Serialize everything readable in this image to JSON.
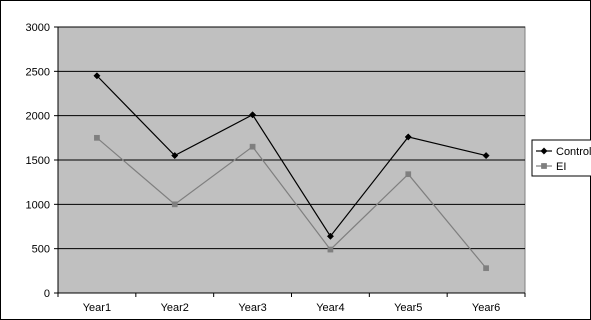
{
  "chart_data": {
    "type": "line",
    "categories": [
      "Year1",
      "Year2",
      "Year3",
      "Year4",
      "Year5",
      "Year6"
    ],
    "series": [
      {
        "name": "Control",
        "values": [
          2450,
          1550,
          2010,
          640,
          1760,
          1550
        ],
        "color": "#000000",
        "marker": "diamond"
      },
      {
        "name": "EI",
        "values": [
          1750,
          1000,
          1650,
          490,
          1340,
          280
        ],
        "color": "#7f7f7f",
        "marker": "square"
      }
    ],
    "ylim": [
      0,
      3000
    ],
    "yticks": [
      "0",
      "500",
      "1000",
      "1500",
      "2000",
      "2500",
      "3000"
    ],
    "grid": true,
    "legend": "right",
    "plot_background": "#c0c0c0",
    "title": "",
    "xlabel": "",
    "ylabel": ""
  }
}
